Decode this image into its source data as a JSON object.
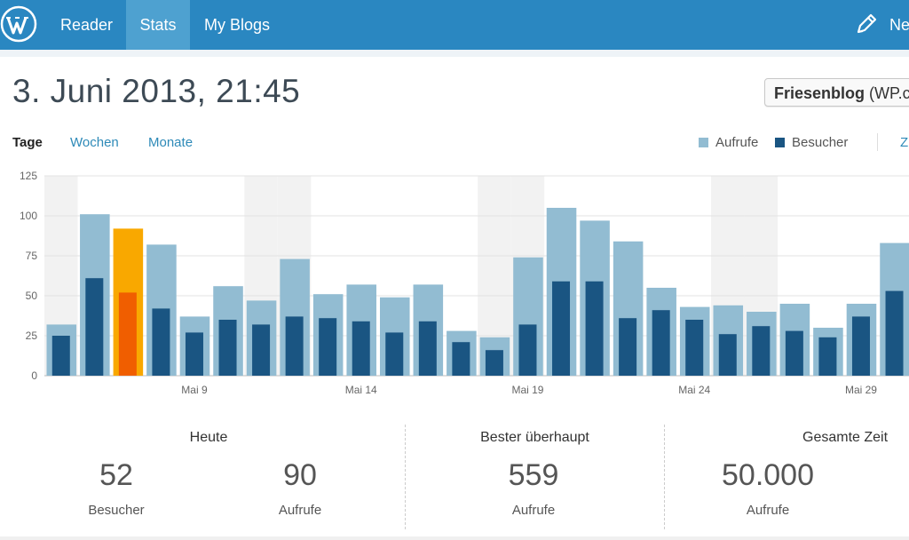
{
  "nav": {
    "items": [
      {
        "label": "Reader"
      },
      {
        "label": "Stats"
      },
      {
        "label": "My Blogs"
      }
    ],
    "new_post_label": "Ne"
  },
  "header": {
    "date": "3. Juni 2013, 21:45",
    "blog_select_bold": "Friesenblog",
    "blog_select_rest": " (WP.c"
  },
  "tabs": {
    "days": "Tage",
    "weeks": "Wochen",
    "months": "Monate"
  },
  "legend": {
    "views": "Aufrufe",
    "visitors": "Besucher",
    "more": "Z"
  },
  "colors": {
    "views": "#92bcd2",
    "visitors": "#1a5582",
    "views_selected": "#f9a800",
    "visitors_selected": "#f05e00",
    "weekend": "#f2f2f2"
  },
  "chart_data": {
    "type": "bar",
    "title": "",
    "xlabel": "",
    "ylabel": "",
    "ylim": [
      0,
      125
    ],
    "yticks": [
      "0",
      "25",
      "50",
      "75",
      "100",
      "125"
    ],
    "xtick_labels": [
      "Mai 9",
      "Mai 14",
      "Mai 19",
      "Mai 24",
      "Mai 29"
    ],
    "xtick_index": [
      4,
      9,
      14,
      19,
      24
    ],
    "weekend_index": [
      0,
      6,
      7,
      13,
      14,
      20,
      21
    ],
    "selected_index": 2,
    "categories": [
      "Mai 5",
      "Mai 6",
      "Mai 7",
      "Mai 8",
      "Mai 9",
      "Mai 10",
      "Mai 11",
      "Mai 12",
      "Mai 13",
      "Mai 14",
      "Mai 15",
      "Mai 16",
      "Mai 17",
      "Mai 18",
      "Mai 19",
      "Mai 20",
      "Mai 21",
      "Mai 22",
      "Mai 23",
      "Mai 24",
      "Mai 25",
      "Mai 26",
      "Mai 27",
      "Mai 28",
      "Mai 29",
      "Mai 30"
    ],
    "series": [
      {
        "name": "Aufrufe",
        "values": [
          32,
          101,
          92,
          82,
          37,
          56,
          47,
          73,
          51,
          57,
          49,
          57,
          28,
          24,
          74,
          105,
          97,
          84,
          55,
          43,
          44,
          40,
          45,
          30,
          45,
          83
        ]
      },
      {
        "name": "Besucher",
        "values": [
          25,
          61,
          52,
          42,
          27,
          35,
          32,
          37,
          36,
          34,
          27,
          34,
          21,
          16,
          32,
          59,
          59,
          36,
          41,
          35,
          26,
          31,
          28,
          24,
          37,
          53
        ]
      }
    ]
  },
  "summary": {
    "today": {
      "title": "Heute",
      "visitors_value": "52",
      "visitors_label": "Besucher",
      "views_value": "90",
      "views_label": "Aufrufe"
    },
    "best": {
      "title": "Bester überhaupt",
      "value": "559",
      "label": "Aufrufe"
    },
    "total": {
      "title": "Gesamte Zeit",
      "value": "50.000",
      "label": "Aufrufe"
    }
  }
}
